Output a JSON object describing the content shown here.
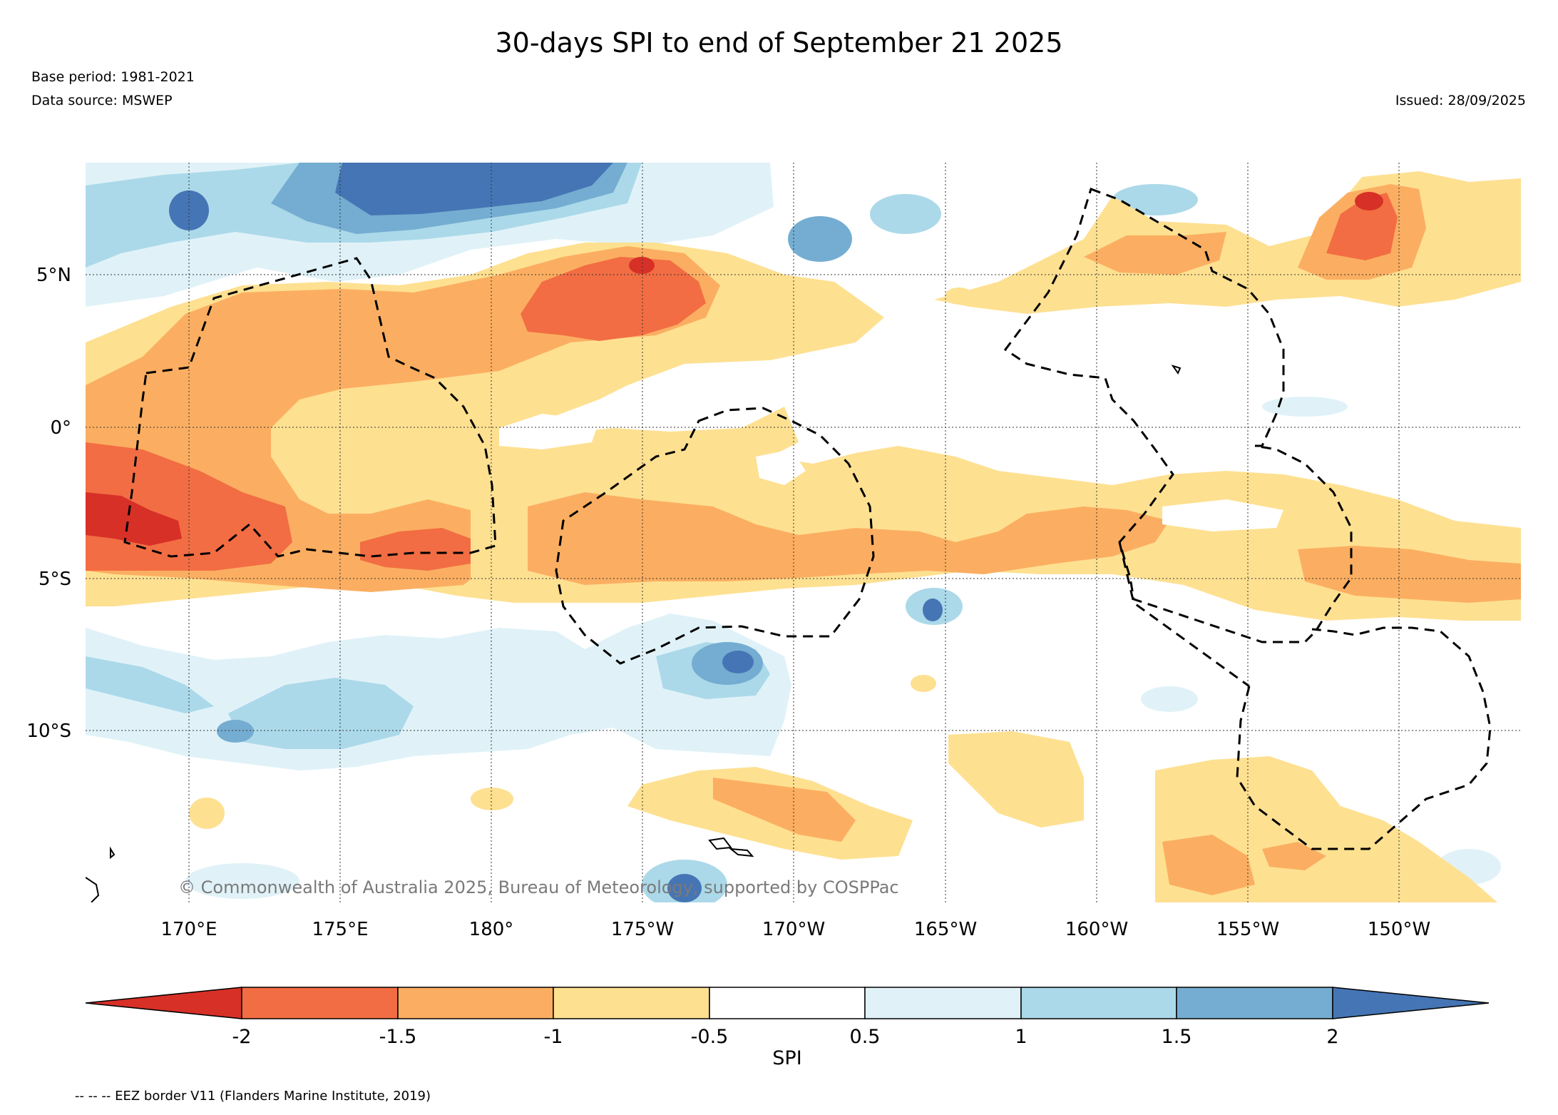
{
  "header": {
    "title": "30-days SPI to end of September 21 2025",
    "base_period": "Base period: 1981-2021",
    "data_source": "Data source: MSWEP",
    "issued": "Issued: 28/09/2025"
  },
  "map": {
    "lat_labels": [
      "5°N",
      "0°",
      "5°S",
      "10°S"
    ],
    "lon_labels": [
      "170°E",
      "175°E",
      "180°",
      "175°W",
      "170°W",
      "165°W",
      "160°W",
      "155°W",
      "150°W"
    ],
    "copyright": "© Commonwealth of Australia 2025, Bureau of Meteorology, supported by COSPPac"
  },
  "colorbar": {
    "title": "SPI",
    "tick_labels": [
      "-2",
      "-1.5",
      "-1",
      "-0.5",
      "0.5",
      "1",
      "1.5",
      "2"
    ],
    "colors": [
      "#d73027",
      "#f26d43",
      "#fbae61",
      "#fee091",
      "#ffffff",
      "#e0f2f8",
      "#abd9e9",
      "#74add1",
      "#4575b4"
    ]
  },
  "legend": {
    "eez_note": "-- -- -- EEZ border V11 (Flanders Marine Institute, 2019)"
  }
}
